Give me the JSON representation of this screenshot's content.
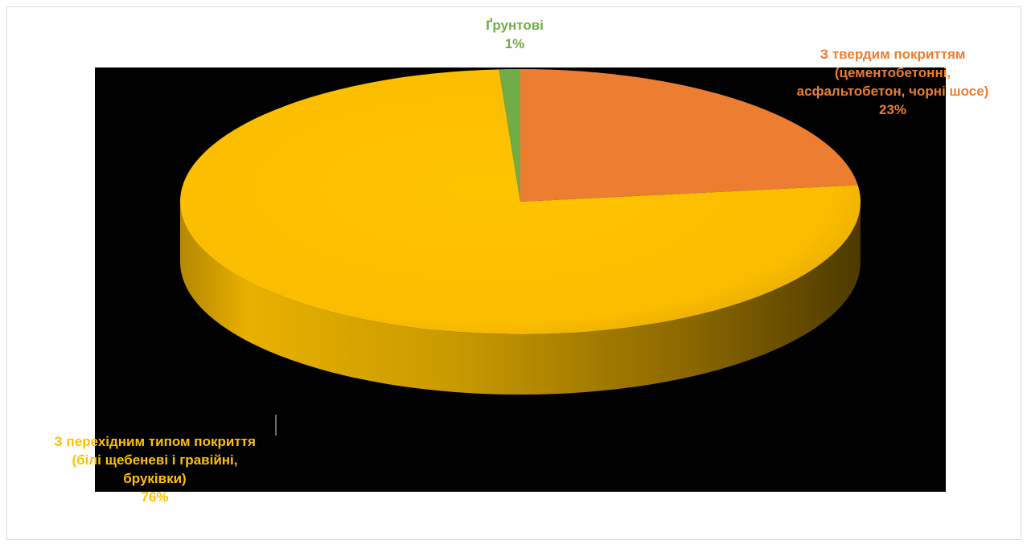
{
  "chart_data": {
    "type": "pie",
    "title": "",
    "slices": [
      {
        "label_lines": [
          "З твердим покриттям",
          "(цементобетонні,",
          "асфальтобетон, чорні шосе)"
        ],
        "value": 23,
        "value_label": "23%",
        "color": "#ED7D31"
      },
      {
        "label_lines": [
          "З перехідним типом покриття",
          "(білі щебеневі і гравійні,",
          "бруківки)"
        ],
        "value": 76,
        "value_label": "76%",
        "color": "#FFC000"
      },
      {
        "label_lines": [
          "Ґрунтові"
        ],
        "value": 1,
        "value_label": "1%",
        "color": "#70AD47"
      }
    ],
    "style": "3d",
    "background": "#000000",
    "legend": "none"
  }
}
